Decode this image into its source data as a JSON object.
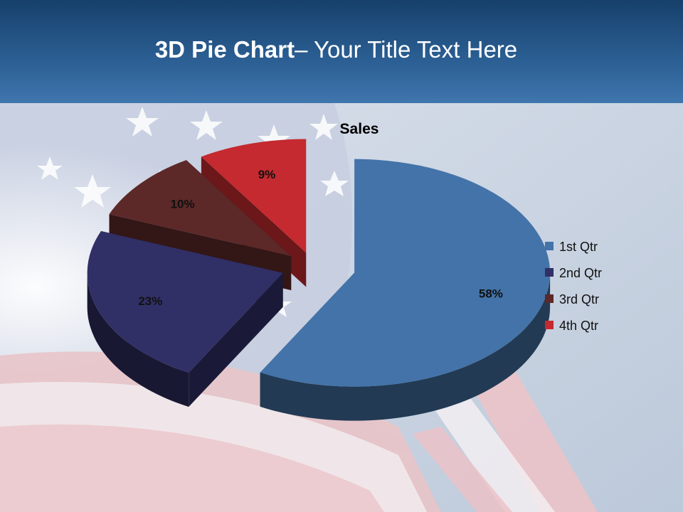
{
  "slide": {
    "title_bold": "3D Pie Chart",
    "title_rest": "– Your Title Text Here"
  },
  "chart_data": {
    "type": "pie",
    "title": "Sales",
    "categories": [
      "1st Qtr",
      "2nd Qtr",
      "3rd Qtr",
      "4th Qtr"
    ],
    "values": [
      58,
      23,
      10,
      9
    ],
    "labels": [
      "58%",
      "23%",
      "10%",
      "9%"
    ],
    "colors": [
      "#4373a8",
      "#302f66",
      "#5c2828",
      "#c42a2f"
    ],
    "exploded": true,
    "three_d": true,
    "legend_position": "right"
  },
  "colors": {
    "header": "#2a5d91",
    "title_text": "#ffffff"
  }
}
